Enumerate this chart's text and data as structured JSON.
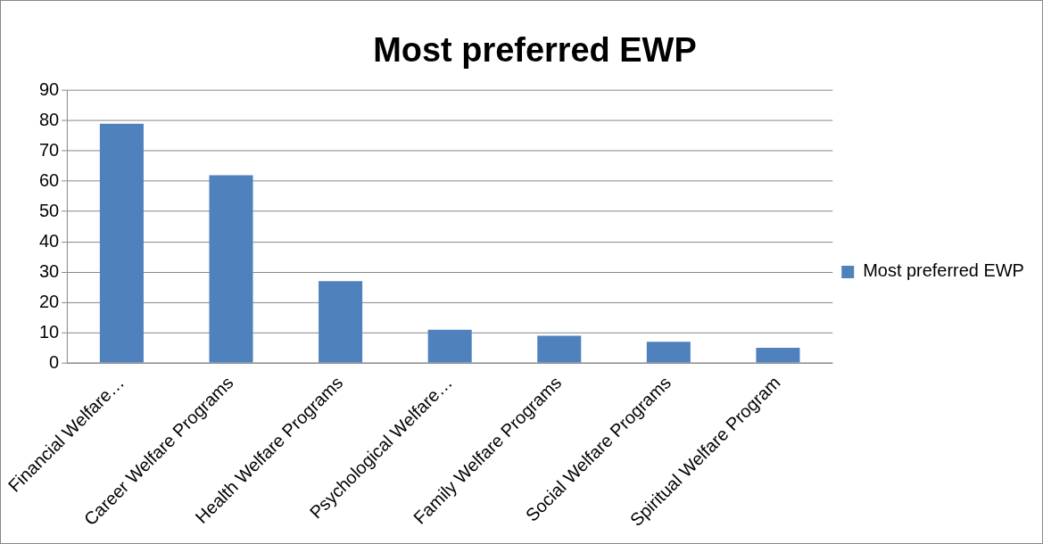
{
  "chart_data": {
    "type": "bar",
    "title": "Most preferred EWP",
    "categories": [
      "Financial Welfare…",
      "Career Welfare Programs",
      "Health Welfare Programs",
      "Psychological Welfare…",
      "Family Welfare Programs",
      "Social Welfare Programs",
      "Spiritual Welfare Program"
    ],
    "series": [
      {
        "name": "Most preferred EWP",
        "color": "#4f81bd",
        "values": [
          79,
          62,
          27,
          11,
          9,
          7,
          5
        ]
      }
    ],
    "ylim": [
      0,
      90
    ],
    "yticks": [
      0,
      10,
      20,
      30,
      40,
      50,
      60,
      70,
      80,
      90
    ],
    "grid": "y",
    "legend": "right"
  }
}
